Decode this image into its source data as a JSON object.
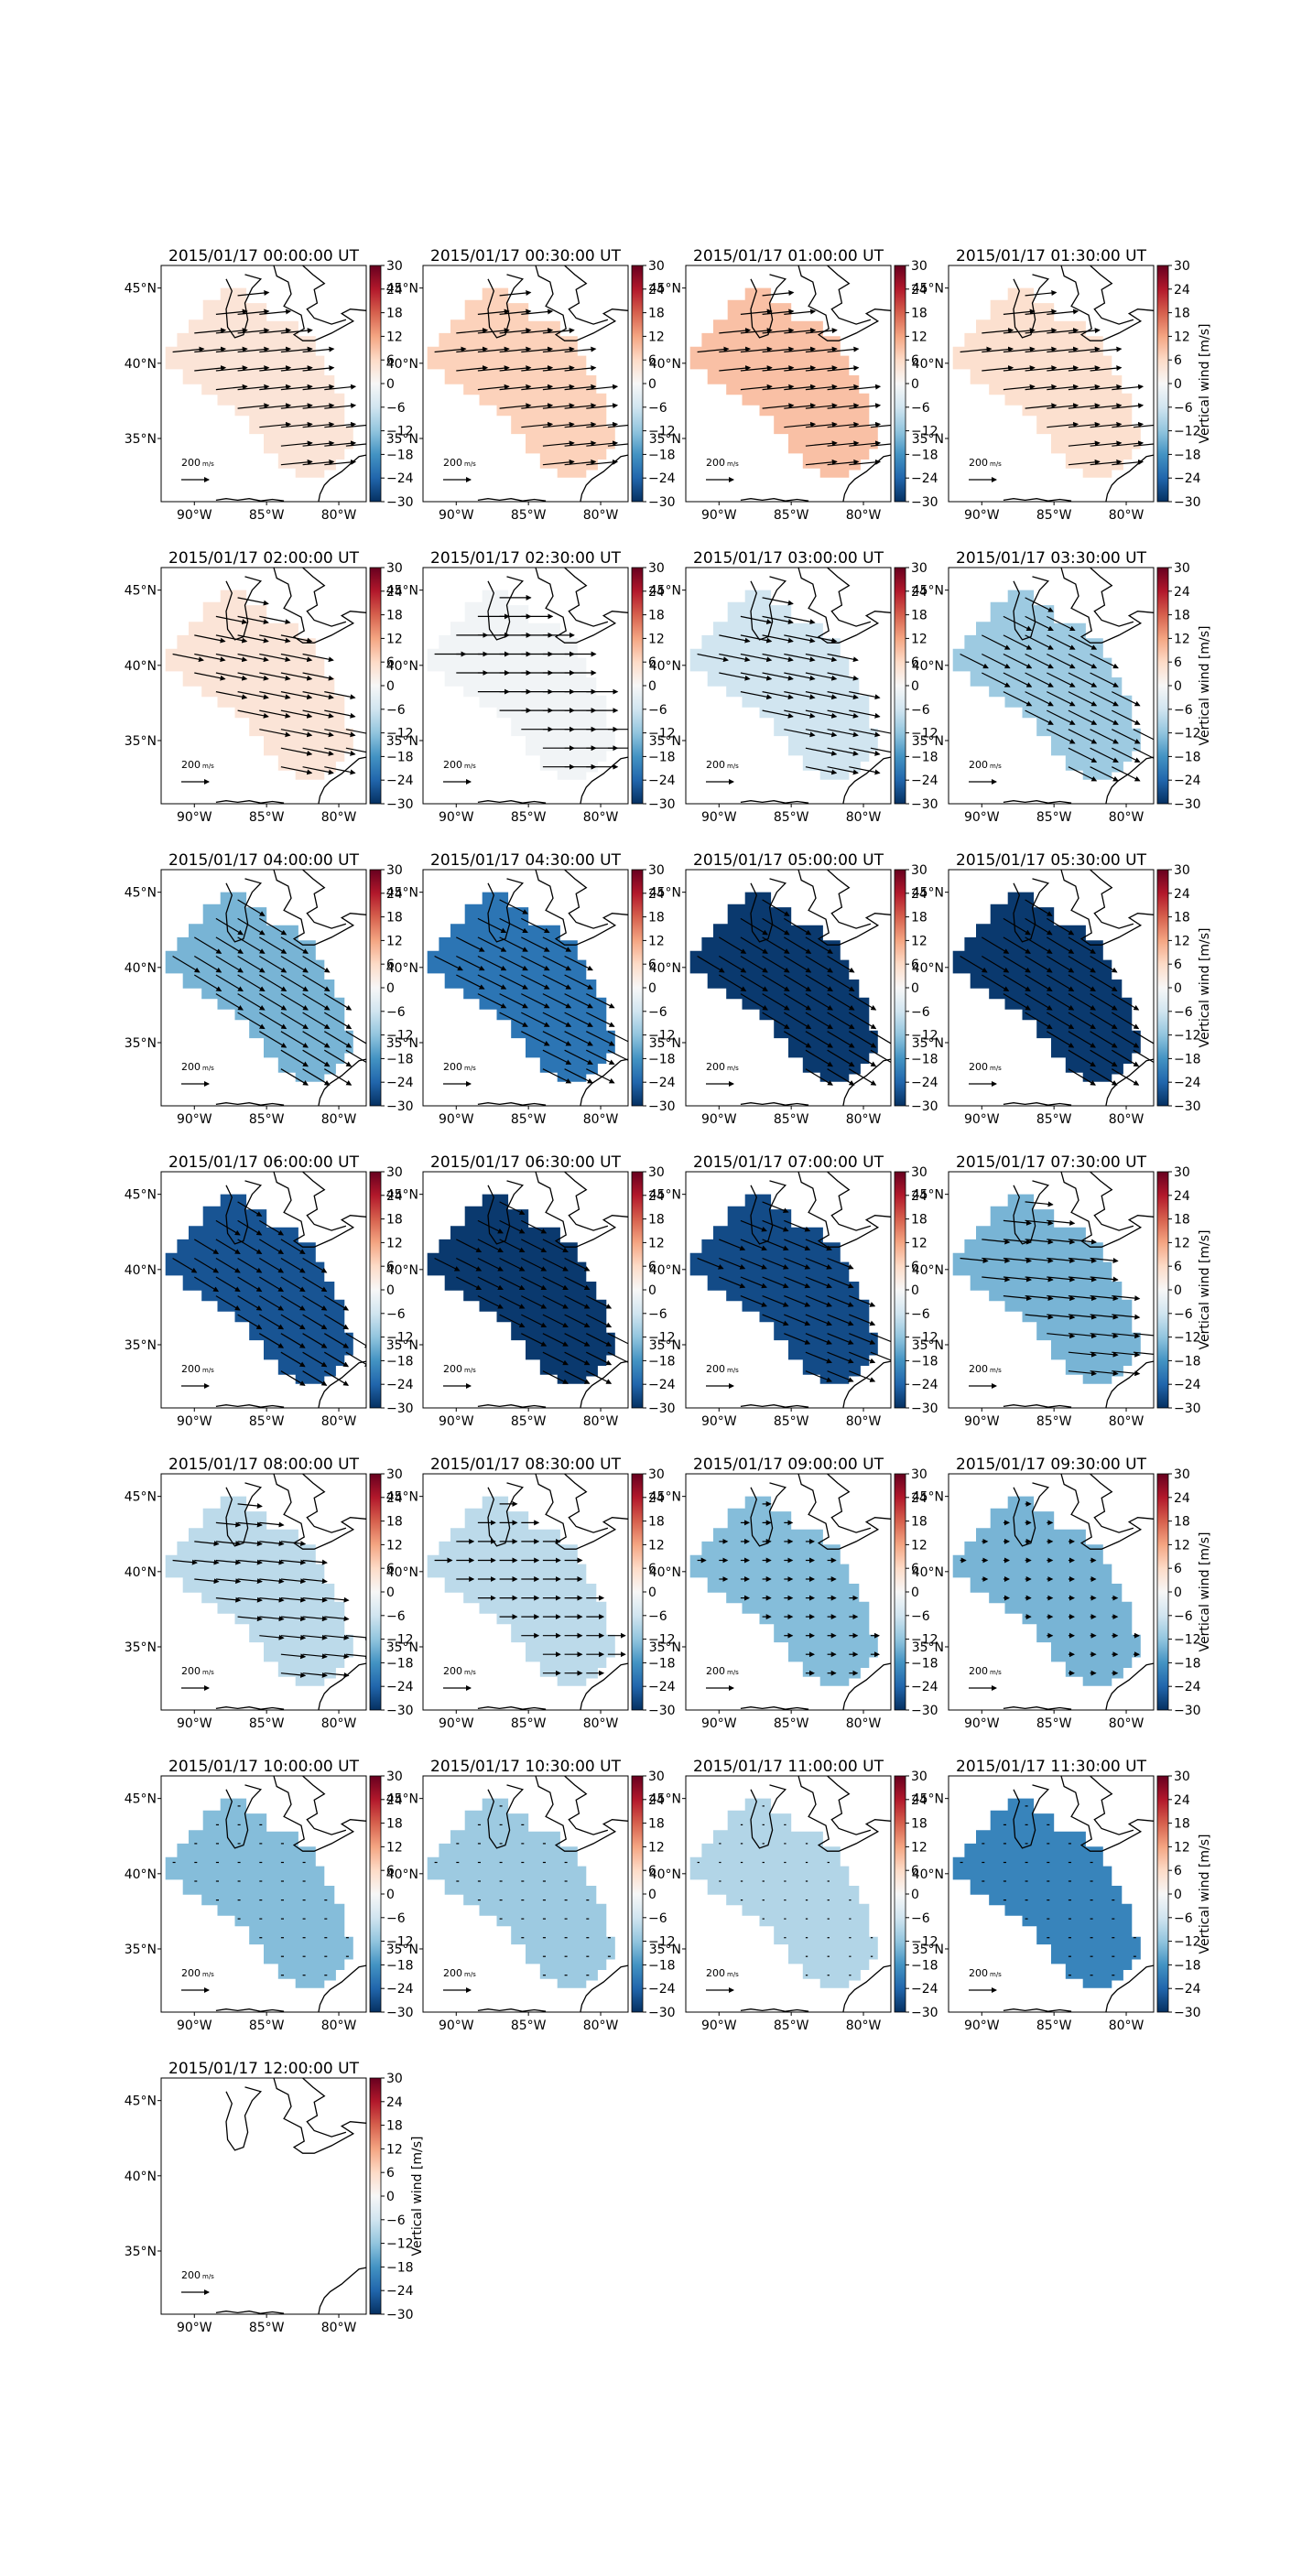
{
  "figure": {
    "colorbar_label": "Vertical wind [m/s]",
    "colorbar_ticks": [
      "30",
      "24",
      "18",
      "12",
      "6",
      "0",
      "−6",
      "−12",
      "−18",
      "−24",
      "−30"
    ],
    "colorbar_tick_values": [
      30,
      24,
      18,
      12,
      6,
      0,
      -6,
      -12,
      -18,
      -24,
      -30
    ],
    "colormap": [
      "#053061",
      "#2166ac",
      "#4393c3",
      "#92c5de",
      "#d1e5f0",
      "#f7f7f7",
      "#fddbc7",
      "#f4a582",
      "#d6604d",
      "#b2182b",
      "#67001f"
    ],
    "lon_ticks": [
      "90°W",
      "85°W",
      "80°W"
    ],
    "lat_ticks": [
      "45°N",
      "40°N",
      "35°N"
    ],
    "lon_values": [
      -90,
      -85,
      -80
    ],
    "lat_values": [
      45,
      40,
      35
    ],
    "lon_range": [
      -92.3,
      -78.1
    ],
    "lat_range": [
      30.8,
      46.5
    ],
    "scale_arrow_label": "200",
    "scale_arrow_unit": "m/s",
    "coastline_color": "#000000",
    "arrow_color": "#000000"
  },
  "chart_data": {
    "type": "heatmap",
    "panels": [
      {
        "title": "2015/01/17 00:00:00 UT",
        "vertical_wind": 4,
        "wind_u": 1.0,
        "wind_v": 0.1,
        "arrow_scale": 0.45
      },
      {
        "title": "2015/01/17 00:30:00 UT",
        "vertical_wind": 7,
        "wind_u": 1.0,
        "wind_v": 0.1,
        "arrow_scale": 0.45
      },
      {
        "title": "2015/01/17 01:00:00 UT",
        "vertical_wind": 9,
        "wind_u": 1.0,
        "wind_v": 0.1,
        "arrow_scale": 0.45
      },
      {
        "title": "2015/01/17 01:30:00 UT",
        "vertical_wind": 5,
        "wind_u": 1.0,
        "wind_v": 0.1,
        "arrow_scale": 0.45
      },
      {
        "title": "2015/01/17 02:00:00 UT",
        "vertical_wind": 4,
        "wind_u": 1.0,
        "wind_v": -0.2,
        "arrow_scale": 0.45
      },
      {
        "title": "2015/01/17 02:30:00 UT",
        "vertical_wind": -1,
        "wind_u": 1.0,
        "wind_v": 0.0,
        "arrow_scale": 0.45
      },
      {
        "title": "2015/01/17 03:00:00 UT",
        "vertical_wind": -6,
        "wind_u": 1.0,
        "wind_v": -0.2,
        "arrow_scale": 0.45
      },
      {
        "title": "2015/01/17 03:30:00 UT",
        "vertical_wind": -11,
        "wind_u": 1.0,
        "wind_v": -0.5,
        "arrow_scale": 0.45
      },
      {
        "title": "2015/01/17 04:00:00 UT",
        "vertical_wind": -14,
        "wind_u": 1.0,
        "wind_v": -0.6,
        "arrow_scale": 0.45
      },
      {
        "title": "2015/01/17 04:30:00 UT",
        "vertical_wind": -22,
        "wind_u": 1.0,
        "wind_v": -0.5,
        "arrow_scale": 0.45
      },
      {
        "title": "2015/01/17 05:00:00 UT",
        "vertical_wind": -29,
        "wind_u": 1.0,
        "wind_v": -0.6,
        "arrow_scale": 0.45
      },
      {
        "title": "2015/01/17 05:30:00 UT",
        "vertical_wind": -29,
        "wind_u": 1.0,
        "wind_v": -0.6,
        "arrow_scale": 0.45
      },
      {
        "title": "2015/01/17 06:00:00 UT",
        "vertical_wind": -26,
        "wind_u": 1.0,
        "wind_v": -0.6,
        "arrow_scale": 0.4
      },
      {
        "title": "2015/01/17 06:30:00 UT",
        "vertical_wind": -29,
        "wind_u": 1.0,
        "wind_v": -0.5,
        "arrow_scale": 0.4
      },
      {
        "title": "2015/01/17 07:00:00 UT",
        "vertical_wind": -27,
        "wind_u": 1.0,
        "wind_v": -0.4,
        "arrow_scale": 0.4
      },
      {
        "title": "2015/01/17 07:30:00 UT",
        "vertical_wind": -14,
        "wind_u": 1.0,
        "wind_v": -0.1,
        "arrow_scale": 0.4
      },
      {
        "title": "2015/01/17 08:00:00 UT",
        "vertical_wind": -8,
        "wind_u": 1.0,
        "wind_v": -0.1,
        "arrow_scale": 0.35
      },
      {
        "title": "2015/01/17 08:30:00 UT",
        "vertical_wind": -8,
        "wind_u": 1.0,
        "wind_v": 0.0,
        "arrow_scale": 0.25
      },
      {
        "title": "2015/01/17 09:00:00 UT",
        "vertical_wind": -13,
        "wind_u": 1.0,
        "wind_v": 0.0,
        "arrow_scale": 0.12
      },
      {
        "title": "2015/01/17 09:30:00 UT",
        "vertical_wind": -14,
        "wind_u": 1.0,
        "wind_v": 0.0,
        "arrow_scale": 0.08
      },
      {
        "title": "2015/01/17 10:00:00 UT",
        "vertical_wind": -13,
        "wind_u": 1.0,
        "wind_v": 0.0,
        "arrow_scale": 0.04
      },
      {
        "title": "2015/01/17 10:30:00 UT",
        "vertical_wind": -11,
        "wind_u": 1.0,
        "wind_v": 0.0,
        "arrow_scale": 0.04
      },
      {
        "title": "2015/01/17 11:00:00 UT",
        "vertical_wind": -9,
        "wind_u": 1.0,
        "wind_v": 0.0,
        "arrow_scale": 0.03
      },
      {
        "title": "2015/01/17 11:30:00 UT",
        "vertical_wind": -20,
        "wind_u": 1.0,
        "wind_v": 0.0,
        "arrow_scale": 0.04
      },
      {
        "title": "2015/01/17 12:00:00 UT",
        "vertical_wind": null,
        "wind_u": 0,
        "wind_v": 0,
        "arrow_scale": 0
      }
    ],
    "clim": [
      -30,
      30
    ],
    "region_outline_lonlat": [
      [
        -88.2,
        45.0
      ],
      [
        -86.4,
        45.0
      ],
      [
        -86.4,
        44.0
      ],
      [
        -85.0,
        44.0
      ],
      [
        -85.0,
        42.8
      ],
      [
        -82.8,
        42.8
      ],
      [
        -82.8,
        41.8
      ],
      [
        -81.6,
        41.8
      ],
      [
        -81.6,
        40.5
      ],
      [
        -81.0,
        40.5
      ],
      [
        -81.0,
        39.2
      ],
      [
        -80.3,
        39.2
      ],
      [
        -80.3,
        38.0
      ],
      [
        -79.6,
        38.0
      ],
      [
        -79.6,
        35.8
      ],
      [
        -79.0,
        35.8
      ],
      [
        -79.0,
        34.3
      ],
      [
        -79.6,
        34.3
      ],
      [
        -79.6,
        33.6
      ],
      [
        -80.2,
        33.6
      ],
      [
        -80.2,
        32.9
      ],
      [
        -81.0,
        32.9
      ],
      [
        -81.0,
        32.4
      ],
      [
        -83.0,
        32.4
      ],
      [
        -83.0,
        33.0
      ],
      [
        -84.2,
        33.0
      ],
      [
        -84.2,
        34.0
      ],
      [
        -85.2,
        34.0
      ],
      [
        -85.2,
        35.3
      ],
      [
        -86.2,
        35.3
      ],
      [
        -86.2,
        36.5
      ],
      [
        -87.2,
        36.5
      ],
      [
        -87.2,
        37.2
      ],
      [
        -88.4,
        37.2
      ],
      [
        -88.4,
        37.9
      ],
      [
        -89.5,
        37.9
      ],
      [
        -89.5,
        38.6
      ],
      [
        -90.8,
        38.6
      ],
      [
        -90.8,
        39.6
      ],
      [
        -92.0,
        39.6
      ],
      [
        -92.0,
        41.1
      ],
      [
        -91.2,
        41.1
      ],
      [
        -91.2,
        42.0
      ],
      [
        -90.4,
        42.0
      ],
      [
        -90.4,
        42.9
      ],
      [
        -89.4,
        42.9
      ],
      [
        -89.4,
        44.2
      ],
      [
        -88.2,
        44.2
      ]
    ]
  }
}
